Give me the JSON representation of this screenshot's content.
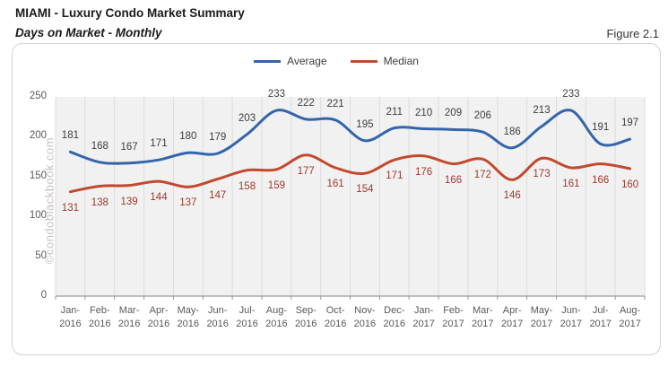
{
  "header": {
    "title": "MIAMI - Luxury Condo Market Summary",
    "subtitle": "Days on Market - Monthly",
    "figure_label": "Figure 2.1"
  },
  "watermark": "©condoblackbook.com",
  "chart_data": {
    "type": "line",
    "smooth": true,
    "grid": "vertical",
    "legend_position": "top-center",
    "categories": [
      "Jan-2016",
      "Feb-2016",
      "Mar-2016",
      "Apr-2016",
      "May-2016",
      "Jun-2016",
      "Jul-2016",
      "Aug-2016",
      "Sep-2016",
      "Oct-2016",
      "Nov-2016",
      "Dec-2016",
      "Jan-2017",
      "Feb-2017",
      "Mar-2017",
      "Apr-2017",
      "May-2017",
      "Jun-2017",
      "Jul-2017",
      "Aug-2017"
    ],
    "series": [
      {
        "name": "Average",
        "color": "#3465ab",
        "label_color": "#3d3d3d",
        "values": [
          181,
          168,
          167,
          171,
          180,
          179,
          203,
          233,
          222,
          221,
          195,
          211,
          210,
          209,
          206,
          186,
          213,
          233,
          191,
          197
        ]
      },
      {
        "name": "Median",
        "color": "#c2492d",
        "label_color": "#9c392a",
        "values": [
          131,
          138,
          139,
          144,
          137,
          147,
          158,
          159,
          177,
          161,
          154,
          171,
          176,
          166,
          172,
          146,
          173,
          161,
          166,
          160
        ]
      }
    ],
    "ylim": [
      0,
      250
    ],
    "yticks": [
      0,
      50,
      100,
      150,
      200,
      250
    ],
    "xlabel": "",
    "ylabel": ""
  },
  "colors": {
    "plot_bg": "#f1f1f1",
    "gridline": "#dcdcdc",
    "axis": "#9a9a9a",
    "frame_border": "#d2d2d2",
    "axis_label": "#595959",
    "watermark": "#c2c2c2"
  }
}
